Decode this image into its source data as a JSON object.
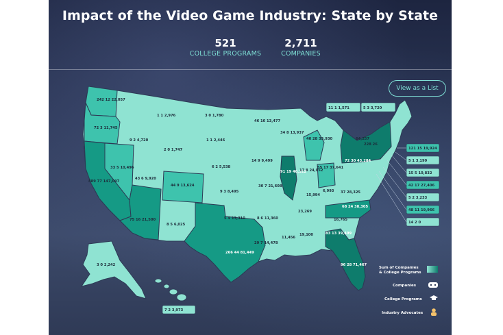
{
  "header": {
    "title": "Impact of the Video Game Industry: State by State",
    "stats": [
      {
        "value": "521",
        "label": "COLLEGE PROGRAMS"
      },
      {
        "value": "2,711",
        "label": "COMPANIES"
      }
    ],
    "view_list_label": "View as a List"
  },
  "legend": [
    {
      "label_line1": "Sum of Companies",
      "label_line2": "& College Programs",
      "icon": "gradient-swatch"
    },
    {
      "label_line1": "Companies",
      "label_line2": "",
      "icon": "gamepad-icon"
    },
    {
      "label_line1": "College Programs",
      "label_line2": "",
      "icon": "graduation-cap-icon"
    },
    {
      "label_line1": "Industry Advocates",
      "label_line2": "",
      "icon": "person-icon"
    }
  ],
  "states": [
    {
      "id": "WA",
      "c": "242",
      "p": "12",
      "a": "22,057"
    },
    {
      "id": "OR",
      "c": "72",
      "p": "3",
      "a": "11,745"
    },
    {
      "id": "CA",
      "c": "889",
      "p": "77",
      "a": "147,097"
    },
    {
      "id": "NV",
      "c": "33",
      "p": "5",
      "a": "10,496"
    },
    {
      "id": "ID",
      "c": "9",
      "p": "2",
      "a": "4,720"
    },
    {
      "id": "MT",
      "c": "1",
      "p": "1",
      "a": "2,976"
    },
    {
      "id": "WY",
      "c": "2",
      "p": "0",
      "a": "1,747"
    },
    {
      "id": "UT",
      "c": "43",
      "p": "6",
      "a": "9,920"
    },
    {
      "id": "CO",
      "c": "44",
      "p": "9",
      "a": "13,624"
    },
    {
      "id": "AZ",
      "c": "75",
      "p": "16",
      "a": "21,500"
    },
    {
      "id": "NM",
      "c": "8",
      "p": "5",
      "a": "6,025"
    },
    {
      "id": "ND",
      "c": "3",
      "p": "0",
      "a": "1,780"
    },
    {
      "id": "SD",
      "c": "1",
      "p": "1",
      "a": "2,446"
    },
    {
      "id": "NE",
      "c": "6",
      "p": "2",
      "a": "5,538"
    },
    {
      "id": "KS",
      "c": "9",
      "p": "3",
      "a": "8,495"
    },
    {
      "id": "OK",
      "c": "5",
      "p": "4",
      "a": "13,310"
    },
    {
      "id": "TX",
      "c": "266",
      "p": "44",
      "a": "81,449"
    },
    {
      "id": "MN",
      "c": "46",
      "p": "10",
      "a": "13,477"
    },
    {
      "id": "IA",
      "c": "14",
      "p": "9",
      "a": "9,499"
    },
    {
      "id": "MO",
      "c": "30",
      "p": "7",
      "a": "21,608"
    },
    {
      "id": "AR",
      "c": "8",
      "p": "6",
      "a": "11,360"
    },
    {
      "id": "LA",
      "c": "29",
      "p": "7",
      "a": "14,478"
    },
    {
      "id": "WI",
      "c": "34",
      "p": "8",
      "a": "13,937"
    },
    {
      "id": "IL",
      "c": "91",
      "p": "19",
      "a": "40,322"
    },
    {
      "id": "MI",
      "c": "40",
      "p": "28",
      "a": "33,930"
    },
    {
      "id": "IN",
      "c": "17",
      "p": "8",
      "a": "24,052"
    },
    {
      "id": "OH",
      "c": "55",
      "p": "17",
      "a": "37,641"
    },
    {
      "id": "KY",
      "c": "",
      "p": "",
      "a": "15,994"
    },
    {
      "id": "TN",
      "c": "",
      "p": "",
      "a": "23,269"
    },
    {
      "id": "MS",
      "c": "",
      "p": "",
      "a": "11,456"
    },
    {
      "id": "AL",
      "c": "",
      "p": "",
      "a": "19,100"
    },
    {
      "id": "GA",
      "c": "83",
      "p": "13",
      "a": "39,499"
    },
    {
      "id": "FL",
      "c": "96",
      "p": "28",
      "a": "71,467"
    },
    {
      "id": "SC",
      "c": "",
      "p": "",
      "a": "16,765"
    },
    {
      "id": "NC",
      "c": "68",
      "p": "24",
      "a": "38,305"
    },
    {
      "id": "VA",
      "c": "37",
      "p": "",
      "a": "28,325"
    },
    {
      "id": "WV",
      "c": "",
      "p": "",
      "a": "6,993"
    },
    {
      "id": "PA",
      "c": "72",
      "p": "30",
      "a": "43,284"
    },
    {
      "id": "NY",
      "c": "",
      "p": "",
      "a": "64,257"
    },
    {
      "id": "VT_NH",
      "c": "228",
      "p": "26",
      "a": ""
    },
    {
      "id": "ME",
      "c": "",
      "p": "",
      "a": "4,394"
    },
    {
      "id": "AK",
      "c": "3",
      "p": "0",
      "a": "2,242"
    },
    {
      "id": "HI",
      "c": "7",
      "p": "2",
      "a": "3,973"
    },
    {
      "id": "box_NH",
      "c": "11",
      "p": "1",
      "a": "1,571"
    },
    {
      "id": "box_VT",
      "c": "5",
      "p": "3",
      "a": "3,720"
    },
    {
      "id": "box_MA",
      "c": "121",
      "p": "15",
      "a": "19,924"
    },
    {
      "id": "box_RI",
      "c": "5",
      "p": "1",
      "a": "3,199"
    },
    {
      "id": "box_CT",
      "c": "15",
      "p": "5",
      "a": "10,832"
    },
    {
      "id": "box_NJ",
      "c": "42",
      "p": "17",
      "a": "27,406"
    },
    {
      "id": "box_DE",
      "c": "5",
      "p": "2",
      "a": "3,233"
    },
    {
      "id": "box_MD",
      "c": "48",
      "p": "11",
      "a": "19,966"
    },
    {
      "id": "box_DC",
      "c": "14",
      "p": "2",
      "a": "0"
    }
  ],
  "colors": {
    "light": "#8fe3d2",
    "mid": "#3ec3ad",
    "dark": "#159a85",
    "darker": "#0e7c6c",
    "accent": "#7fe0d6"
  }
}
